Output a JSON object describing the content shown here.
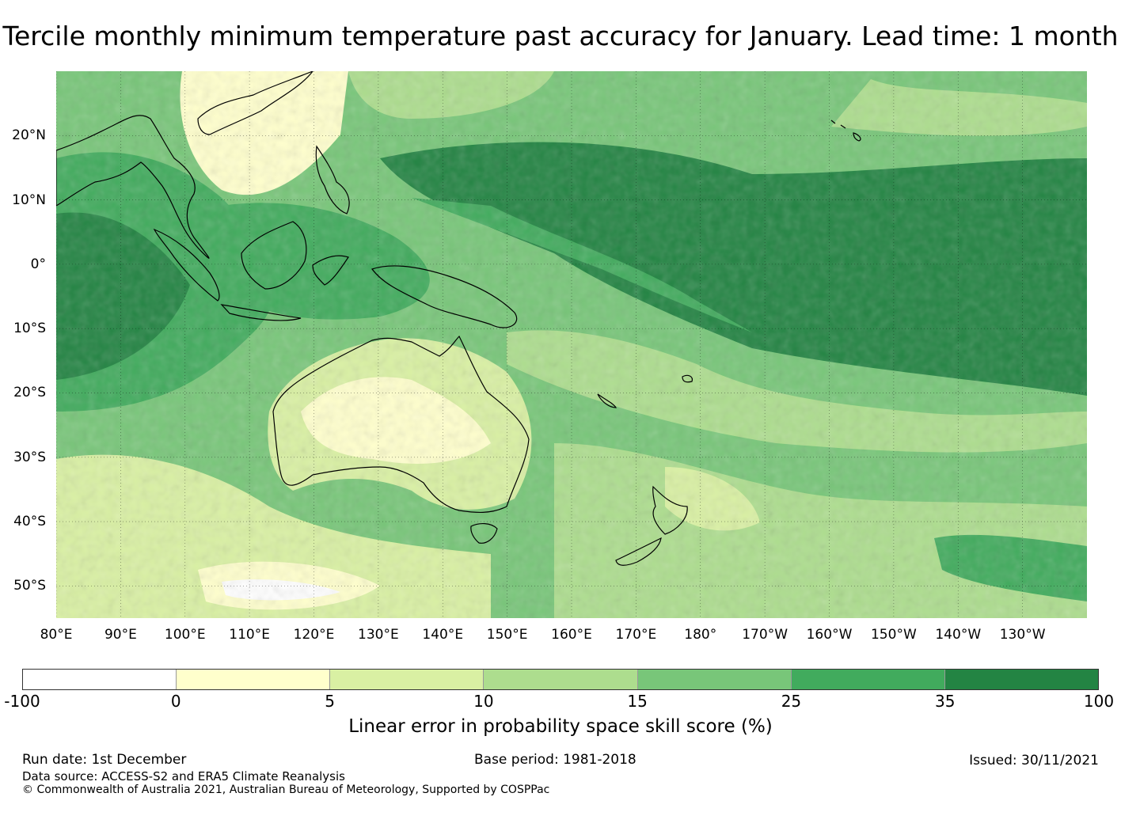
{
  "title": "Tercile monthly minimum temperature past accuracy for January. Lead time: 1 month",
  "map": {
    "lon_labels": [
      "80°E",
      "90°E",
      "100°E",
      "110°E",
      "120°E",
      "130°E",
      "140°E",
      "150°E",
      "160°E",
      "170°E",
      "180°",
      "170°W",
      "160°W",
      "150°W",
      "140°W",
      "130°W"
    ],
    "lat_labels": [
      "20°N",
      "10°N",
      "0°",
      "10°S",
      "20°S",
      "30°S",
      "40°S",
      "50°S"
    ],
    "extent": {
      "lon_min": 80,
      "lon_max": 240,
      "lat_min": -55,
      "lat_max": 30
    },
    "regions": [
      {
        "name": "equatorial-pacific-high-skill",
        "skill_band": "35-100"
      },
      {
        "name": "indian-ocean-high-skill",
        "skill_band": "25-35"
      },
      {
        "name": "australia-low-skill",
        "skill_band": "0-10"
      },
      {
        "name": "southern-ocean-mixed",
        "skill_band": "5-25"
      }
    ]
  },
  "colorbar": {
    "boundaries": [
      "-100",
      "0",
      "5",
      "10",
      "15",
      "25",
      "35",
      "100"
    ],
    "colors": [
      "#ffffff",
      "#ffffcc",
      "#d9f0a3",
      "#addd8e",
      "#78c679",
      "#41ab5d",
      "#238443"
    ],
    "label": "Linear error in probability space skill score (%)"
  },
  "footer": {
    "run_date": "Run date: 1st December",
    "base_period": "Base period: 1981-2018",
    "issued": "Issued: 30/11/2021",
    "data_source": "Data source: ACCESS-S2 and ERA5 Climate Reanalysis",
    "copyright": "© Commonwealth of Australia 2021, Australian Bureau of Meteorology, Supported by COSPPac"
  }
}
